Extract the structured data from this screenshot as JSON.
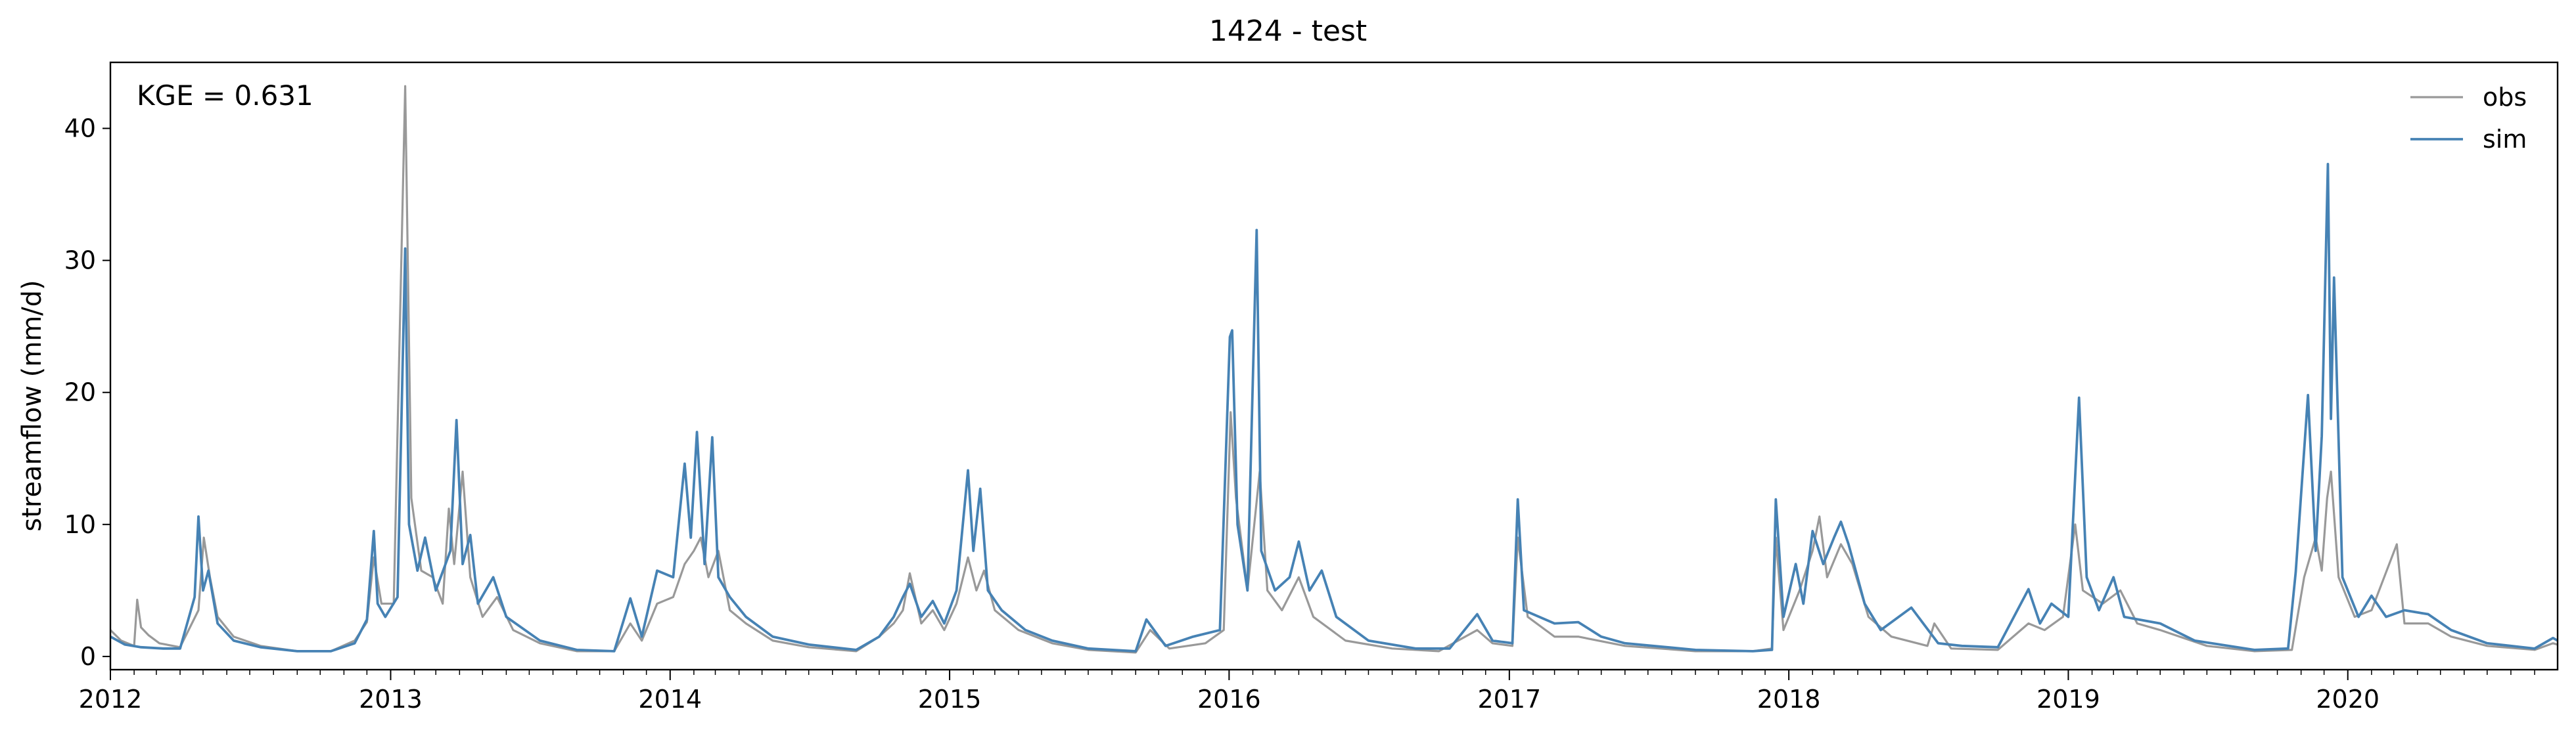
{
  "chart_data": {
    "type": "line",
    "title": "1424 - test",
    "xlabel": "",
    "ylabel": "streamflow (mm/d)",
    "annotation": "KGE = 0.631",
    "xlim": [
      "2012-01-01",
      "2020-10-01"
    ],
    "ylim": [
      -1,
      45
    ],
    "x_ticks": [
      "2012",
      "2013",
      "2014",
      "2015",
      "2016",
      "2017",
      "2018",
      "2019",
      "2020"
    ],
    "y_ticks": [
      0,
      10,
      20,
      30,
      40
    ],
    "grid": false,
    "legend_position": "top-right",
    "series": [
      {
        "name": "obs",
        "color": "#999999",
        "points": [
          [
            "2012-01-01",
            2.0
          ],
          [
            "2012-01-15",
            1.2
          ],
          [
            "2012-02-01",
            0.8
          ],
          [
            "2012-02-05",
            4.3
          ],
          [
            "2012-02-10",
            2.2
          ],
          [
            "2012-02-20",
            1.6
          ],
          [
            "2012-03-05",
            1.0
          ],
          [
            "2012-04-01",
            0.7
          ],
          [
            "2012-04-25",
            3.5
          ],
          [
            "2012-05-02",
            9.0
          ],
          [
            "2012-05-10",
            6.0
          ],
          [
            "2012-05-20",
            3.0
          ],
          [
            "2012-06-10",
            1.5
          ],
          [
            "2012-07-15",
            0.8
          ],
          [
            "2012-09-01",
            0.4
          ],
          [
            "2012-10-15",
            0.4
          ],
          [
            "2012-11-15",
            1.2
          ],
          [
            "2012-12-01",
            2.6
          ],
          [
            "2012-12-10",
            7.5
          ],
          [
            "2012-12-20",
            4.0
          ],
          [
            "2013-01-05",
            4.0
          ],
          [
            "2013-01-20",
            43.2
          ],
          [
            "2013-01-28",
            12.0
          ],
          [
            "2013-02-10",
            6.5
          ],
          [
            "2013-02-25",
            6.0
          ],
          [
            "2013-03-10",
            4.0
          ],
          [
            "2013-03-18",
            11.2
          ],
          [
            "2013-03-25",
            7.0
          ],
          [
            "2013-04-05",
            14.0
          ],
          [
            "2013-04-15",
            6.0
          ],
          [
            "2013-05-01",
            3.0
          ],
          [
            "2013-05-20",
            4.5
          ],
          [
            "2013-06-10",
            2.0
          ],
          [
            "2013-07-15",
            1.0
          ],
          [
            "2013-09-01",
            0.4
          ],
          [
            "2013-10-20",
            0.4
          ],
          [
            "2013-11-10",
            2.5
          ],
          [
            "2013-11-25",
            1.2
          ],
          [
            "2013-12-15",
            4.0
          ],
          [
            "2014-01-05",
            4.5
          ],
          [
            "2014-01-20",
            7.0
          ],
          [
            "2014-02-01",
            8.0
          ],
          [
            "2014-02-10",
            9.0
          ],
          [
            "2014-02-20",
            6.0
          ],
          [
            "2014-03-05",
            8.0
          ],
          [
            "2014-03-20",
            3.5
          ],
          [
            "2014-04-10",
            2.5
          ],
          [
            "2014-05-15",
            1.2
          ],
          [
            "2014-07-01",
            0.7
          ],
          [
            "2014-09-01",
            0.4
          ],
          [
            "2014-10-01",
            1.5
          ],
          [
            "2014-10-20",
            2.5
          ],
          [
            "2014-11-01",
            3.5
          ],
          [
            "2014-11-10",
            6.3
          ],
          [
            "2014-11-25",
            2.5
          ],
          [
            "2014-12-10",
            3.5
          ],
          [
            "2014-12-25",
            2.0
          ],
          [
            "2015-01-10",
            4.0
          ],
          [
            "2015-01-25",
            7.5
          ],
          [
            "2015-02-05",
            5.0
          ],
          [
            "2015-02-15",
            6.5
          ],
          [
            "2015-03-01",
            3.5
          ],
          [
            "2015-04-01",
            2.0
          ],
          [
            "2015-05-15",
            1.0
          ],
          [
            "2015-07-01",
            0.5
          ],
          [
            "2015-09-01",
            0.3
          ],
          [
            "2015-09-20",
            2.0
          ],
          [
            "2015-10-15",
            0.6
          ],
          [
            "2015-12-01",
            1.0
          ],
          [
            "2015-12-25",
            2.0
          ],
          [
            "2016-01-03",
            18.5
          ],
          [
            "2016-01-10",
            12.0
          ],
          [
            "2016-01-25",
            5.0
          ],
          [
            "2016-02-10",
            14.0
          ],
          [
            "2016-02-20",
            5.0
          ],
          [
            "2016-03-10",
            3.5
          ],
          [
            "2016-04-01",
            6.0
          ],
          [
            "2016-04-20",
            3.0
          ],
          [
            "2016-06-01",
            1.2
          ],
          [
            "2016-08-01",
            0.6
          ],
          [
            "2016-10-01",
            0.4
          ],
          [
            "2016-11-20",
            2.0
          ],
          [
            "2016-12-10",
            1.0
          ],
          [
            "2017-01-05",
            0.8
          ],
          [
            "2017-01-12",
            9.0
          ],
          [
            "2017-01-25",
            3.0
          ],
          [
            "2017-03-01",
            1.5
          ],
          [
            "2017-04-01",
            1.5
          ],
          [
            "2017-06-01",
            0.8
          ],
          [
            "2017-09-01",
            0.4
          ],
          [
            "2017-11-15",
            0.4
          ],
          [
            "2017-12-10",
            0.6
          ],
          [
            "2017-12-15",
            9.0
          ],
          [
            "2017-12-25",
            2.0
          ],
          [
            "2018-01-15",
            5.0
          ],
          [
            "2018-02-01",
            8.0
          ],
          [
            "2018-02-10",
            10.6
          ],
          [
            "2018-02-20",
            6.0
          ],
          [
            "2018-03-10",
            8.5
          ],
          [
            "2018-03-25",
            7.0
          ],
          [
            "2018-04-15",
            3.0
          ],
          [
            "2018-05-15",
            1.5
          ],
          [
            "2018-07-01",
            0.8
          ],
          [
            "2018-07-10",
            2.5
          ],
          [
            "2018-08-01",
            0.6
          ],
          [
            "2018-10-01",
            0.5
          ],
          [
            "2018-11-10",
            2.5
          ],
          [
            "2018-12-01",
            2.0
          ],
          [
            "2018-12-25",
            3.0
          ],
          [
            "2019-01-10",
            10.0
          ],
          [
            "2019-01-20",
            5.0
          ],
          [
            "2019-02-15",
            4.0
          ],
          [
            "2019-03-10",
            5.0
          ],
          [
            "2019-04-01",
            2.5
          ],
          [
            "2019-05-01",
            2.0
          ],
          [
            "2019-07-01",
            0.8
          ],
          [
            "2019-09-01",
            0.4
          ],
          [
            "2019-10-20",
            0.5
          ],
          [
            "2019-11-05",
            6.0
          ],
          [
            "2019-11-20",
            9.0
          ],
          [
            "2019-11-28",
            6.5
          ],
          [
            "2019-12-05",
            12.0
          ],
          [
            "2019-12-10",
            14.0
          ],
          [
            "2019-12-20",
            6.0
          ],
          [
            "2020-01-10",
            3.0
          ],
          [
            "2020-02-01",
            3.5
          ],
          [
            "2020-03-05",
            8.5
          ],
          [
            "2020-03-15",
            2.5
          ],
          [
            "2020-04-15",
            2.5
          ],
          [
            "2020-05-15",
            1.5
          ],
          [
            "2020-07-01",
            0.8
          ],
          [
            "2020-09-01",
            0.5
          ],
          [
            "2020-09-25",
            1.0
          ],
          [
            "2020-10-01",
            0.9
          ]
        ]
      },
      {
        "name": "sim",
        "color": "#4682b4",
        "points": [
          [
            "2012-01-01",
            1.5
          ],
          [
            "2012-01-20",
            0.9
          ],
          [
            "2012-02-10",
            0.7
          ],
          [
            "2012-03-10",
            0.6
          ],
          [
            "2012-04-01",
            0.6
          ],
          [
            "2012-04-20",
            4.5
          ],
          [
            "2012-04-25",
            10.6
          ],
          [
            "2012-05-01",
            5.0
          ],
          [
            "2012-05-08",
            6.5
          ],
          [
            "2012-05-20",
            2.5
          ],
          [
            "2012-06-10",
            1.2
          ],
          [
            "2012-07-15",
            0.7
          ],
          [
            "2012-09-01",
            0.4
          ],
          [
            "2012-10-15",
            0.4
          ],
          [
            "2012-11-15",
            1.0
          ],
          [
            "2012-12-01",
            2.8
          ],
          [
            "2012-12-10",
            9.5
          ],
          [
            "2012-12-15",
            4.0
          ],
          [
            "2012-12-25",
            3.0
          ],
          [
            "2013-01-10",
            4.5
          ],
          [
            "2013-01-20",
            30.9
          ],
          [
            "2013-01-25",
            10.0
          ],
          [
            "2013-02-05",
            6.5
          ],
          [
            "2013-02-15",
            9.0
          ],
          [
            "2013-03-01",
            5.0
          ],
          [
            "2013-03-20",
            8.0
          ],
          [
            "2013-03-28",
            17.9
          ],
          [
            "2013-04-05",
            7.0
          ],
          [
            "2013-04-15",
            9.2
          ],
          [
            "2013-04-25",
            4.0
          ],
          [
            "2013-05-15",
            6.0
          ],
          [
            "2013-06-01",
            3.0
          ],
          [
            "2013-07-15",
            1.2
          ],
          [
            "2013-09-01",
            0.5
          ],
          [
            "2013-10-20",
            0.4
          ],
          [
            "2013-11-10",
            4.4
          ],
          [
            "2013-11-25",
            1.5
          ],
          [
            "2013-12-15",
            6.5
          ],
          [
            "2014-01-05",
            6.0
          ],
          [
            "2014-01-20",
            14.6
          ],
          [
            "2014-01-28",
            9.0
          ],
          [
            "2014-02-05",
            17.0
          ],
          [
            "2014-02-15",
            7.0
          ],
          [
            "2014-02-25",
            16.6
          ],
          [
            "2014-03-05",
            6.0
          ],
          [
            "2014-03-20",
            4.5
          ],
          [
            "2014-04-10",
            3.0
          ],
          [
            "2014-05-15",
            1.5
          ],
          [
            "2014-07-01",
            0.9
          ],
          [
            "2014-09-01",
            0.5
          ],
          [
            "2014-10-01",
            1.5
          ],
          [
            "2014-10-20",
            3.0
          ],
          [
            "2014-11-01",
            4.5
          ],
          [
            "2014-11-10",
            5.5
          ],
          [
            "2014-11-25",
            3.0
          ],
          [
            "2014-12-10",
            4.2
          ],
          [
            "2014-12-25",
            2.5
          ],
          [
            "2015-01-10",
            5.0
          ],
          [
            "2015-01-25",
            14.1
          ],
          [
            "2015-02-01",
            8.0
          ],
          [
            "2015-02-10",
            12.7
          ],
          [
            "2015-02-20",
            5.0
          ],
          [
            "2015-03-10",
            3.5
          ],
          [
            "2015-04-10",
            2.0
          ],
          [
            "2015-05-15",
            1.2
          ],
          [
            "2015-07-01",
            0.6
          ],
          [
            "2015-09-01",
            0.4
          ],
          [
            "2015-09-15",
            2.8
          ],
          [
            "2015-10-10",
            0.8
          ],
          [
            "2015-11-15",
            1.5
          ],
          [
            "2015-12-20",
            2.0
          ],
          [
            "2016-01-02",
            24.2
          ],
          [
            "2016-01-05",
            24.7
          ],
          [
            "2016-01-12",
            10.0
          ],
          [
            "2016-01-25",
            5.0
          ],
          [
            "2016-02-06",
            32.3
          ],
          [
            "2016-02-12",
            8.0
          ],
          [
            "2016-03-01",
            5.0
          ],
          [
            "2016-03-20",
            6.0
          ],
          [
            "2016-04-01",
            8.7
          ],
          [
            "2016-04-15",
            5.0
          ],
          [
            "2016-05-01",
            6.5
          ],
          [
            "2016-05-20",
            3.0
          ],
          [
            "2016-07-01",
            1.2
          ],
          [
            "2016-09-01",
            0.6
          ],
          [
            "2016-10-15",
            0.6
          ],
          [
            "2016-11-20",
            3.2
          ],
          [
            "2016-12-10",
            1.2
          ],
          [
            "2017-01-05",
            1.0
          ],
          [
            "2017-01-12",
            11.9
          ],
          [
            "2017-01-20",
            3.5
          ],
          [
            "2017-03-01",
            2.5
          ],
          [
            "2017-04-01",
            2.6
          ],
          [
            "2017-05-01",
            1.5
          ],
          [
            "2017-06-01",
            1.0
          ],
          [
            "2017-09-01",
            0.5
          ],
          [
            "2017-11-15",
            0.4
          ],
          [
            "2017-12-10",
            0.5
          ],
          [
            "2017-12-15",
            11.9
          ],
          [
            "2017-12-25",
            3.0
          ],
          [
            "2018-01-10",
            7.0
          ],
          [
            "2018-01-20",
            4.0
          ],
          [
            "2018-02-01",
            9.5
          ],
          [
            "2018-02-15",
            7.0
          ],
          [
            "2018-03-01",
            9.0
          ],
          [
            "2018-03-10",
            10.2
          ],
          [
            "2018-03-20",
            8.5
          ],
          [
            "2018-04-10",
            4.0
          ],
          [
            "2018-05-01",
            2.0
          ],
          [
            "2018-06-10",
            3.7
          ],
          [
            "2018-07-15",
            1.0
          ],
          [
            "2018-08-15",
            0.8
          ],
          [
            "2018-10-01",
            0.7
          ],
          [
            "2018-11-10",
            5.1
          ],
          [
            "2018-11-25",
            2.5
          ],
          [
            "2018-12-10",
            4.0
          ],
          [
            "2019-01-01",
            3.0
          ],
          [
            "2019-01-15",
            19.6
          ],
          [
            "2019-01-25",
            6.0
          ],
          [
            "2019-02-10",
            3.5
          ],
          [
            "2019-03-01",
            6.0
          ],
          [
            "2019-03-15",
            3.0
          ],
          [
            "2019-05-01",
            2.5
          ],
          [
            "2019-06-15",
            1.2
          ],
          [
            "2019-09-01",
            0.5
          ],
          [
            "2019-10-15",
            0.6
          ],
          [
            "2019-10-25",
            6.4
          ],
          [
            "2019-11-10",
            19.8
          ],
          [
            "2019-11-20",
            8.0
          ],
          [
            "2019-11-28",
            16.7
          ],
          [
            "2019-12-06",
            37.3
          ],
          [
            "2019-12-10",
            18.0
          ],
          [
            "2019-12-14",
            28.7
          ],
          [
            "2019-12-25",
            6.0
          ],
          [
            "2020-01-15",
            3.0
          ],
          [
            "2020-02-01",
            4.6
          ],
          [
            "2020-02-20",
            3.0
          ],
          [
            "2020-03-15",
            3.5
          ],
          [
            "2020-04-15",
            3.2
          ],
          [
            "2020-05-15",
            2.0
          ],
          [
            "2020-07-01",
            1.0
          ],
          [
            "2020-09-01",
            0.6
          ],
          [
            "2020-09-25",
            1.4
          ],
          [
            "2020-10-01",
            1.2
          ]
        ]
      }
    ]
  }
}
